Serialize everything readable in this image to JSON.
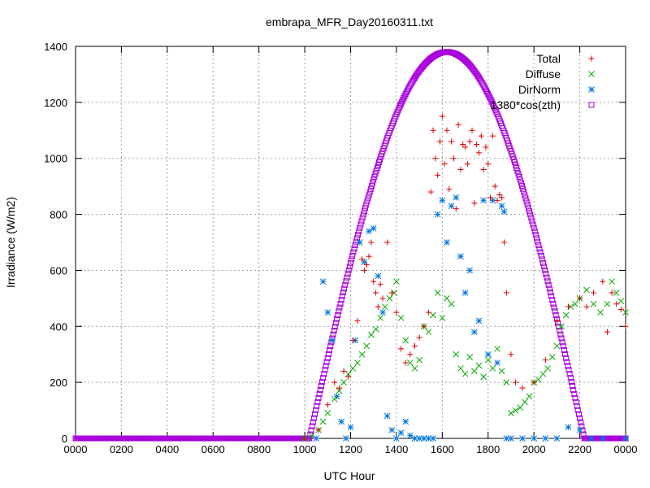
{
  "chart_data": {
    "type": "scatter",
    "title": "embrapa_MFR_Day20160311.txt",
    "xlabel": "UTC Hour",
    "ylabel": "Irradiance (W/m2)",
    "xlim": [
      0,
      2400
    ],
    "ylim": [
      0,
      1400
    ],
    "grid": true,
    "legend_position": "top-right",
    "x_ticks": [
      "0000",
      "0200",
      "0400",
      "0600",
      "0800",
      "1000",
      "1200",
      "1400",
      "1600",
      "1800",
      "2000",
      "2200",
      "0000"
    ],
    "y_ticks": [
      0,
      200,
      400,
      600,
      800,
      1000,
      1200,
      1400
    ],
    "series": [
      {
        "name": "Total",
        "marker": "+",
        "color": "#dd0000",
        "x": [
          1000,
          1060,
          1100,
          1130,
          1150,
          1170,
          1190,
          1210,
          1230,
          1250,
          1260,
          1270,
          1280,
          1290,
          1300,
          1310,
          1320,
          1330,
          1340,
          1360,
          1380,
          1400,
          1420,
          1440,
          1460,
          1480,
          1500,
          1520,
          1540,
          1550,
          1560,
          1570,
          1580,
          1590,
          1600,
          1610,
          1620,
          1630,
          1640,
          1650,
          1660,
          1670,
          1680,
          1690,
          1700,
          1710,
          1720,
          1730,
          1740,
          1750,
          1760,
          1770,
          1780,
          1790,
          1800,
          1810,
          1820,
          1830,
          1840,
          1850,
          1860,
          1870,
          1880,
          1900,
          1920,
          1950,
          2000,
          2050,
          2100,
          2150,
          2200,
          2230,
          2260,
          2300,
          2320,
          2340,
          2360,
          2380,
          2400
        ],
        "y": [
          0,
          30,
          120,
          200,
          180,
          240,
          220,
          350,
          420,
          640,
          600,
          620,
          650,
          700,
          560,
          520,
          470,
          550,
          500,
          700,
          520,
          450,
          320,
          270,
          300,
          330,
          360,
          400,
          450,
          880,
          1100,
          1000,
          940,
          1060,
          1150,
          980,
          1100,
          890,
          1060,
          1000,
          820,
          1120,
          960,
          1050,
          1040,
          980,
          1060,
          1100,
          840,
          1050,
          1020,
          1080,
          960,
          1040,
          980,
          860,
          1080,
          900,
          850,
          870,
          860,
          700,
          520,
          300,
          200,
          180,
          200,
          280,
          420,
          470,
          500,
          470,
          520,
          560,
          380,
          520,
          480,
          460,
          400
        ]
      },
      {
        "name": "Diffuse",
        "marker": "x",
        "color": "#00aa00",
        "x": [
          1000,
          1030,
          1060,
          1080,
          1100,
          1130,
          1150,
          1170,
          1190,
          1210,
          1230,
          1250,
          1270,
          1290,
          1310,
          1330,
          1350,
          1370,
          1390,
          1400,
          1420,
          1440,
          1460,
          1480,
          1500,
          1520,
          1540,
          1560,
          1580,
          1600,
          1620,
          1640,
          1660,
          1680,
          1700,
          1720,
          1740,
          1760,
          1780,
          1800,
          1820,
          1840,
          1860,
          1880,
          1900,
          1920,
          1940,
          1960,
          1980,
          2000,
          2020,
          2040,
          2060,
          2080,
          2100,
          2120,
          2140,
          2160,
          2180,
          2200,
          2230,
          2260,
          2290,
          2320,
          2340,
          2360,
          2380,
          2400
        ],
        "y": [
          0,
          10,
          30,
          60,
          90,
          140,
          170,
          200,
          230,
          250,
          270,
          300,
          330,
          370,
          390,
          430,
          470,
          500,
          520,
          560,
          430,
          350,
          270,
          250,
          280,
          400,
          380,
          440,
          520,
          430,
          500,
          480,
          300,
          250,
          230,
          290,
          240,
          260,
          220,
          280,
          250,
          320,
          240,
          200,
          90,
          100,
          110,
          130,
          150,
          200,
          210,
          230,
          250,
          290,
          330,
          400,
          440,
          470,
          480,
          500,
          530,
          480,
          450,
          480,
          560,
          520,
          490,
          450
        ]
      },
      {
        "name": "DirNorm",
        "marker": "*",
        "color": "#0077dd",
        "x": [
          1000,
          1050,
          1080,
          1100,
          1120,
          1140,
          1160,
          1180,
          1200,
          1220,
          1240,
          1260,
          1280,
          1300,
          1320,
          1340,
          1360,
          1380,
          1400,
          1420,
          1440,
          1460,
          1480,
          1500,
          1520,
          1540,
          1560,
          1580,
          1600,
          1620,
          1640,
          1660,
          1680,
          1700,
          1720,
          1740,
          1760,
          1780,
          1800,
          1820,
          1840,
          1860,
          1870,
          1880,
          1900,
          1950,
          2000,
          2050,
          2100,
          2150,
          2200,
          2250,
          2300,
          2400
        ],
        "y": [
          0,
          0,
          560,
          450,
          350,
          150,
          60,
          0,
          40,
          350,
          700,
          630,
          740,
          750,
          580,
          450,
          80,
          30,
          0,
          20,
          60,
          10,
          0,
          0,
          0,
          0,
          0,
          800,
          850,
          700,
          830,
          860,
          650,
          520,
          600,
          380,
          420,
          850,
          300,
          850,
          270,
          830,
          810,
          0,
          0,
          0,
          0,
          0,
          0,
          40,
          30,
          0,
          0,
          0
        ]
      },
      {
        "name": "1380*cos(zth)",
        "marker": "square",
        "color": "#aa00dd",
        "peak": 1380,
        "peak_hour": 1620,
        "rise_hour": 1020,
        "set_hour": 2220
      }
    ]
  }
}
